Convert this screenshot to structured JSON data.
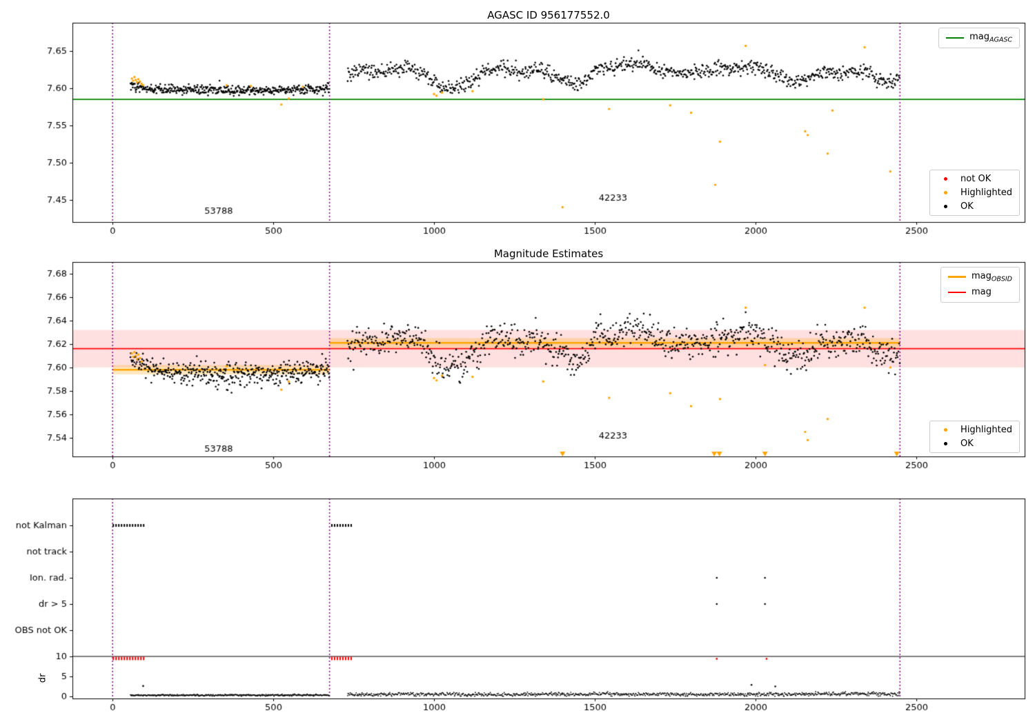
{
  "colors": {
    "ok": "#000000",
    "highlighted": "#ffa500",
    "not_ok": "#ff0000",
    "agasc_line": "#008000",
    "obsid_line": "#ffa500",
    "mag_line": "#ff0000",
    "vline": "#800080",
    "band_red": "rgba(255,0,0,0.12)",
    "band_orange": "rgba(255,165,0,0.25)",
    "frame": "#000000",
    "text": "#000000"
  },
  "seed": 42,
  "xaxis": {
    "min": -125,
    "max": 2838,
    "ticks": [
      0,
      500,
      1000,
      1500,
      2000,
      2500
    ]
  },
  "vlines": [
    0,
    675,
    2450
  ],
  "chart_data": {
    "p1": {
      "type": "scatter",
      "title": "AGASC ID 956177552.0",
      "ymin": 7.42,
      "ymax": 7.688,
      "yticks": [
        7.45,
        7.5,
        7.55,
        7.6,
        7.65
      ],
      "agasc_mag": 7.585,
      "legend_line": {
        "prefix": "mag",
        "sub": "AGASC"
      },
      "legend_points": [
        {
          "label": "not OK",
          "color": "not_ok"
        },
        {
          "label": "Highlighted",
          "color": "highlighted"
        },
        {
          "label": "OK",
          "color": "ok"
        }
      ],
      "annotations": [
        {
          "x": 330,
          "y": 7.434,
          "text": "53788"
        },
        {
          "x": 1557,
          "y": 7.452,
          "text": "42233"
        }
      ],
      "scatter": [
        {
          "x0": 55,
          "x1": 675,
          "n": 430,
          "sigma": 0.0032,
          "controls": [
            [
              55,
              7.604
            ],
            [
              90,
              7.6
            ],
            [
              150,
              7.5985
            ],
            [
              250,
              7.598
            ],
            [
              350,
              7.5975
            ],
            [
              450,
              7.597
            ],
            [
              550,
              7.598
            ],
            [
              675,
              7.5995
            ]
          ]
        },
        {
          "x0": 730,
          "x1": 2450,
          "n": 880,
          "sigma": 0.005,
          "controls": [
            [
              730,
              7.615
            ],
            [
              760,
              7.624
            ],
            [
              800,
              7.621
            ],
            [
              860,
              7.624
            ],
            [
              920,
              7.627
            ],
            [
              980,
              7.618
            ],
            [
              1010,
              7.603
            ],
            [
              1050,
              7.6
            ],
            [
              1090,
              7.603
            ],
            [
              1130,
              7.614
            ],
            [
              1170,
              7.625
            ],
            [
              1220,
              7.627
            ],
            [
              1270,
              7.621
            ],
            [
              1320,
              7.626
            ],
            [
              1370,
              7.617
            ],
            [
              1410,
              7.61
            ],
            [
              1450,
              7.604
            ],
            [
              1480,
              7.613
            ],
            [
              1510,
              7.628
            ],
            [
              1550,
              7.625
            ],
            [
              1590,
              7.632
            ],
            [
              1640,
              7.634
            ],
            [
              1690,
              7.625
            ],
            [
              1740,
              7.622
            ],
            [
              1790,
              7.621
            ],
            [
              1840,
              7.622
            ],
            [
              1890,
              7.625
            ],
            [
              1930,
              7.627
            ],
            [
              1970,
              7.632
            ],
            [
              2010,
              7.626
            ],
            [
              2060,
              7.62
            ],
            [
              2100,
              7.61
            ],
            [
              2140,
              7.608
            ],
            [
              2180,
              7.615
            ],
            [
              2220,
              7.624
            ],
            [
              2260,
              7.618
            ],
            [
              2300,
              7.626
            ],
            [
              2340,
              7.622
            ],
            [
              2380,
              7.612
            ],
            [
              2420,
              7.61
            ],
            [
              2450,
              7.612
            ]
          ]
        }
      ],
      "highlighted": [
        [
          60,
          7.613
        ],
        [
          64,
          7.61
        ],
        [
          68,
          7.615
        ],
        [
          72,
          7.611
        ],
        [
          76,
          7.608
        ],
        [
          80,
          7.612
        ],
        [
          85,
          7.609
        ],
        [
          90,
          7.606
        ],
        [
          95,
          7.604
        ],
        [
          355,
          7.604
        ],
        [
          430,
          7.603
        ],
        [
          525,
          7.578
        ],
        [
          548,
          7.586
        ],
        [
          592,
          7.602
        ],
        [
          1000,
          7.592
        ],
        [
          1008,
          7.59
        ],
        [
          1025,
          7.594
        ],
        [
          1120,
          7.596
        ],
        [
          1340,
          7.585
        ],
        [
          1400,
          7.44
        ],
        [
          1545,
          7.572
        ],
        [
          1735,
          7.577
        ],
        [
          1800,
          7.567
        ],
        [
          1875,
          7.47
        ],
        [
          1890,
          7.528
        ],
        [
          1970,
          7.657
        ],
        [
          2155,
          7.542
        ],
        [
          2163,
          7.537
        ],
        [
          2225,
          7.512
        ],
        [
          2240,
          7.57
        ],
        [
          2340,
          7.655
        ],
        [
          2420,
          7.488
        ]
      ]
    },
    "p2": {
      "type": "scatter",
      "title": "Magnitude Estimates",
      "ymin": 7.524,
      "ymax": 7.69,
      "yticks": [
        7.54,
        7.56,
        7.58,
        7.6,
        7.62,
        7.64,
        7.66,
        7.68
      ],
      "mag": 7.616,
      "mag_err": 0.016,
      "obsid_segments": [
        {
          "x0": 0,
          "x1": 675,
          "mag": 7.598,
          "err": 0.004
        },
        {
          "x0": 675,
          "x1": 2450,
          "mag": 7.621,
          "err": 0.004
        }
      ],
      "legend_lines": [
        {
          "prefix": "mag",
          "sub": "OBSID",
          "color": "obsid_line"
        },
        {
          "prefix": "mag",
          "sub": "",
          "color": "mag_line"
        }
      ],
      "legend_points": [
        {
          "label": "Highlighted",
          "color": "highlighted"
        },
        {
          "label": "OK",
          "color": "ok"
        }
      ],
      "annotations": [
        {
          "x": 330,
          "y": 7.53,
          "text": "53788"
        },
        {
          "x": 1557,
          "y": 7.541,
          "text": "42233"
        }
      ],
      "scatter": [
        {
          "x0": 55,
          "x1": 675,
          "n": 430,
          "sigma": 0.005,
          "controls": [
            [
              55,
              7.608
            ],
            [
              90,
              7.601
            ],
            [
              150,
              7.597
            ],
            [
              250,
              7.595
            ],
            [
              350,
              7.594
            ],
            [
              450,
              7.593
            ],
            [
              550,
              7.595
            ],
            [
              640,
              7.598
            ],
            [
              675,
              7.6
            ]
          ]
        },
        {
          "x0": 730,
          "x1": 2450,
          "n": 880,
          "sigma": 0.0065,
          "controls": [
            [
              730,
              7.615
            ],
            [
              760,
              7.624
            ],
            [
              800,
              7.621
            ],
            [
              860,
              7.624
            ],
            [
              920,
              7.627
            ],
            [
              980,
              7.618
            ],
            [
              1010,
              7.603
            ],
            [
              1050,
              7.6
            ],
            [
              1090,
              7.603
            ],
            [
              1130,
              7.614
            ],
            [
              1170,
              7.625
            ],
            [
              1220,
              7.627
            ],
            [
              1270,
              7.621
            ],
            [
              1320,
              7.626
            ],
            [
              1370,
              7.617
            ],
            [
              1410,
              7.61
            ],
            [
              1450,
              7.604
            ],
            [
              1480,
              7.613
            ],
            [
              1510,
              7.628
            ],
            [
              1550,
              7.625
            ],
            [
              1590,
              7.632
            ],
            [
              1640,
              7.634
            ],
            [
              1690,
              7.625
            ],
            [
              1740,
              7.622
            ],
            [
              1790,
              7.621
            ],
            [
              1840,
              7.622
            ],
            [
              1890,
              7.625
            ],
            [
              1930,
              7.627
            ],
            [
              1970,
              7.632
            ],
            [
              2010,
              7.626
            ],
            [
              2060,
              7.62
            ],
            [
              2100,
              7.61
            ],
            [
              2140,
              7.608
            ],
            [
              2180,
              7.615
            ],
            [
              2220,
              7.624
            ],
            [
              2260,
              7.618
            ],
            [
              2300,
              7.626
            ],
            [
              2340,
              7.622
            ],
            [
              2380,
              7.612
            ],
            [
              2420,
              7.61
            ],
            [
              2450,
              7.612
            ]
          ]
        }
      ],
      "highlighted": [
        [
          60,
          7.612
        ],
        [
          64,
          7.609
        ],
        [
          68,
          7.613
        ],
        [
          72,
          7.61
        ],
        [
          76,
          7.607
        ],
        [
          80,
          7.611
        ],
        [
          85,
          7.608
        ],
        [
          90,
          7.605
        ],
        [
          355,
          7.601
        ],
        [
          525,
          7.581
        ],
        [
          548,
          7.588
        ],
        [
          1000,
          7.591
        ],
        [
          1008,
          7.589
        ],
        [
          1025,
          7.593
        ],
        [
          1120,
          7.592
        ],
        [
          1340,
          7.588
        ],
        [
          1545,
          7.574
        ],
        [
          1735,
          7.578
        ],
        [
          1800,
          7.567
        ],
        [
          1890,
          7.573
        ],
        [
          1970,
          7.651
        ],
        [
          2030,
          7.602
        ],
        [
          2155,
          7.545
        ],
        [
          2163,
          7.538
        ],
        [
          2225,
          7.556
        ],
        [
          2340,
          7.651
        ],
        [
          2420,
          7.6
        ]
      ],
      "clipped_x": [
        1400,
        1872,
        1888,
        2030,
        2440
      ]
    },
    "p3": {
      "type": "scatter",
      "dr_label": "dr",
      "dr_ticks": [
        0,
        5,
        10
      ],
      "dr_hline": 10,
      "red_dr": 9.5,
      "flags": [
        {
          "category": "not Kalman",
          "segments": [
            [
              0,
              100
            ],
            [
              680,
              745
            ]
          ],
          "points": []
        },
        {
          "category": "not track",
          "segments": [],
          "points": []
        },
        {
          "category": "Ion. rad.",
          "segments": [],
          "points": [
            1880,
            2030
          ]
        },
        {
          "category": "dr > 5",
          "segments": [],
          "points": [
            1880,
            2030
          ]
        },
        {
          "category": "OBS not OK",
          "segments": [],
          "points": []
        }
      ],
      "red_segments": [
        [
          0,
          100
        ],
        [
          680,
          748
        ]
      ],
      "red_points": [
        [
          1880,
          9.4
        ],
        [
          2035,
          9.4
        ]
      ],
      "trace": [
        {
          "x0": 55,
          "x1": 675,
          "n": 430,
          "sigma": 0.1,
          "controls": [
            [
              55,
              0.3
            ],
            [
              200,
              0.28
            ],
            [
              400,
              0.3
            ],
            [
              675,
              0.33
            ]
          ]
        },
        {
          "x0": 730,
          "x1": 2450,
          "n": 900,
          "sigma": 0.22,
          "controls": [
            [
              730,
              0.45
            ],
            [
              850,
              0.5
            ],
            [
              900,
              0.7
            ],
            [
              950,
              0.5
            ],
            [
              1050,
              0.62
            ],
            [
              1150,
              0.42
            ],
            [
              1250,
              0.5
            ],
            [
              1350,
              0.6
            ],
            [
              1450,
              0.5
            ],
            [
              1500,
              0.7
            ],
            [
              1600,
              0.5
            ],
            [
              1700,
              0.6
            ],
            [
              1800,
              0.45
            ],
            [
              1900,
              0.52
            ],
            [
              2000,
              0.56
            ],
            [
              2100,
              0.48
            ],
            [
              2200,
              0.6
            ],
            [
              2300,
              0.68
            ],
            [
              2400,
              0.5
            ],
            [
              2450,
              0.6
            ]
          ]
        }
      ],
      "outliers": [
        [
          95,
          2.6
        ],
        [
          1988,
          2.9
        ],
        [
          2062,
          2.5
        ]
      ]
    }
  }
}
